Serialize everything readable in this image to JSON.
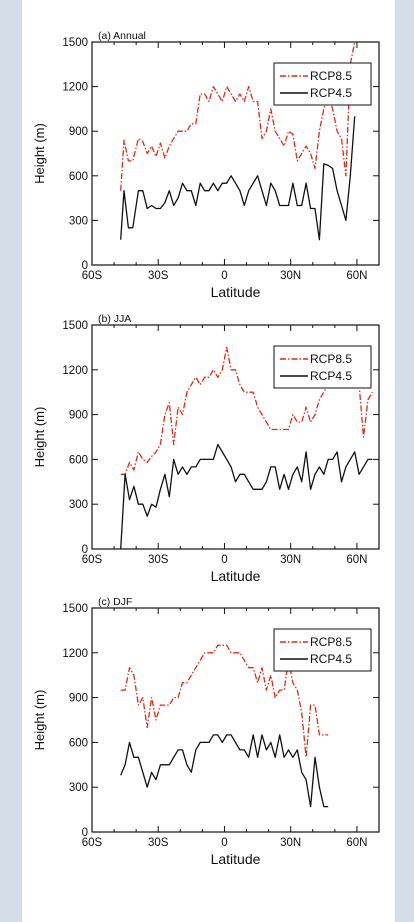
{
  "chart_data": [
    {
      "type": "line",
      "title": "(a) Annual",
      "xlabel": "Latitude",
      "ylabel": "Height (m)",
      "xlim": [
        -60,
        70
      ],
      "ylim": [
        0,
        1500
      ],
      "xticks": [
        -60,
        -30,
        0,
        30,
        60
      ],
      "xtick_labels": [
        "60S",
        "30S",
        "0",
        "30N",
        "60N"
      ],
      "yticks": [
        0,
        300,
        600,
        900,
        1200,
        1500
      ],
      "ytick_labels": [
        "0",
        "300",
        "600",
        "900",
        "1200",
        "1500"
      ],
      "grid": false,
      "legend_position": "top-right",
      "series": [
        {
          "name": "RCP8.5",
          "color": "#dd2c12",
          "dash": "dashed",
          "x": [
            -47,
            -45.5,
            -43.5,
            -41.5,
            -39,
            -37,
            -35,
            -33,
            -31,
            -29,
            -27,
            -25,
            -23,
            -21,
            -19,
            -17,
            -15,
            -13,
            -11,
            -9,
            -7,
            -5,
            -3,
            -1,
            1,
            3,
            5,
            7,
            9,
            11,
            13,
            15,
            17,
            19,
            21,
            23,
            25,
            27,
            29,
            31,
            33,
            35,
            37,
            39,
            41,
            43,
            45,
            47,
            49,
            51,
            53,
            55,
            57,
            59
          ],
          "y": [
            500,
            840,
            700,
            700,
            850,
            830,
            750,
            800,
            730,
            820,
            720,
            800,
            850,
            900,
            900,
            900,
            950,
            950,
            1150,
            1150,
            1100,
            1200,
            1150,
            1100,
            1200,
            1150,
            1100,
            1150,
            1100,
            1200,
            1100,
            1100,
            850,
            900,
            1050,
            900,
            850,
            800,
            900,
            880,
            700,
            750,
            800,
            750,
            650,
            900,
            1050,
            1150,
            1050,
            900,
            850,
            600,
            1350,
            1500
          ]
        },
        {
          "name": "RCP4.5",
          "color": "#111111",
          "dash": "solid",
          "x": [
            -47,
            -45.5,
            -43.5,
            -41.5,
            -39,
            -37,
            -35,
            -33,
            -31,
            -29,
            -27,
            -25,
            -23,
            -21,
            -19,
            -17,
            -15,
            -13,
            -11,
            -9,
            -7,
            -5,
            -3,
            -1,
            1,
            3,
            5,
            7,
            9,
            11,
            13,
            15,
            17,
            19,
            21,
            23,
            25,
            27,
            29,
            31,
            33,
            35,
            37,
            39,
            41,
            43,
            45,
            47,
            49,
            51,
            53,
            55,
            57,
            59
          ],
          "y": [
            170,
            500,
            250,
            250,
            500,
            500,
            380,
            400,
            380,
            380,
            420,
            500,
            400,
            450,
            550,
            500,
            500,
            400,
            550,
            500,
            500,
            550,
            500,
            550,
            550,
            600,
            550,
            500,
            400,
            500,
            550,
            600,
            500,
            400,
            550,
            500,
            400,
            400,
            400,
            550,
            400,
            400,
            550,
            380,
            380,
            170,
            680,
            670,
            650,
            500,
            400,
            300,
            600,
            1000
          ]
        }
      ]
    },
    {
      "type": "line",
      "title": "(b) JJA",
      "xlabel": "Latitude",
      "ylabel": "Height (m)",
      "xlim": [
        -60,
        70
      ],
      "ylim": [
        0,
        1500
      ],
      "xticks": [
        -60,
        -30,
        0,
        30,
        60
      ],
      "xtick_labels": [
        "60S",
        "30S",
        "0",
        "30N",
        "60N"
      ],
      "yticks": [
        0,
        300,
        600,
        900,
        1200,
        1500
      ],
      "ytick_labels": [
        "0",
        "300",
        "600",
        "900",
        "1200",
        "1500"
      ],
      "grid": false,
      "legend_position": "top-right",
      "series": [
        {
          "name": "RCP8.5",
          "color": "#dd2c12",
          "dash": "dashed",
          "x": [
            -47,
            -45,
            -43,
            -41,
            -39,
            -37,
            -35,
            -33,
            -31,
            -29,
            -27,
            -25,
            -23,
            -21,
            -19,
            -17,
            -15,
            -13,
            -11,
            -9,
            -7,
            -5,
            -3,
            -1,
            1,
            3,
            5,
            7,
            9,
            11,
            13,
            15,
            17,
            19,
            21,
            23,
            25,
            27,
            29,
            31,
            33,
            35,
            37,
            39,
            41,
            43,
            45,
            47,
            49,
            51,
            53,
            55,
            57,
            59,
            61,
            63,
            65,
            67
          ],
          "y": [
            500,
            500,
            580,
            530,
            650,
            600,
            580,
            620,
            650,
            700,
            900,
            980,
            700,
            950,
            900,
            1050,
            1100,
            1150,
            1100,
            1150,
            1150,
            1200,
            1150,
            1200,
            1350,
            1200,
            1200,
            1100,
            1050,
            1050,
            1050,
            950,
            900,
            850,
            800,
            800,
            800,
            800,
            800,
            900,
            850,
            850,
            950,
            850,
            900,
            1000,
            1050,
            1100,
            1150,
            1100,
            1150,
            1200,
            1150,
            1100,
            1100,
            750,
            1000,
            1050
          ]
        },
        {
          "name": "RCP4.5",
          "color": "#111111",
          "dash": "solid",
          "x": [
            -47,
            -45,
            -43,
            -41,
            -39,
            -37,
            -35,
            -33,
            -31,
            -29,
            -27,
            -25,
            -23,
            -21,
            -19,
            -17,
            -15,
            -13,
            -11,
            -9,
            -7,
            -5,
            -3,
            -1,
            1,
            3,
            5,
            7,
            9,
            11,
            13,
            15,
            17,
            19,
            21,
            23,
            25,
            27,
            29,
            31,
            33,
            35,
            37,
            39,
            41,
            43,
            45,
            47,
            49,
            51,
            53,
            55,
            57,
            59,
            61,
            63,
            65,
            67
          ],
          "y": [
            0,
            500,
            330,
            420,
            300,
            300,
            220,
            300,
            280,
            400,
            500,
            350,
            600,
            500,
            550,
            500,
            550,
            550,
            600,
            600,
            600,
            600,
            700,
            650,
            600,
            550,
            450,
            500,
            500,
            450,
            400,
            400,
            400,
            450,
            550,
            550,
            400,
            500,
            400,
            500,
            550,
            450,
            650,
            400,
            500,
            550,
            500,
            600,
            600,
            650,
            450,
            550,
            600,
            650,
            500,
            550,
            600,
            600
          ]
        }
      ]
    },
    {
      "type": "line",
      "title": "(c) DJF",
      "xlabel": "Latitude",
      "ylabel": "Height (m)",
      "xlim": [
        -60,
        70
      ],
      "ylim": [
        0,
        1500
      ],
      "xticks": [
        -60,
        -30,
        0,
        30,
        60
      ],
      "xtick_labels": [
        "60S",
        "30S",
        "0",
        "30N",
        "60N"
      ],
      "yticks": [
        0,
        300,
        600,
        900,
        1200,
        1500
      ],
      "ytick_labels": [
        "0",
        "300",
        "600",
        "900",
        "1200",
        "1500"
      ],
      "grid": false,
      "legend_position": "top-right",
      "series": [
        {
          "name": "RCP8.5",
          "color": "#dd2c12",
          "dash": "dashed",
          "x": [
            -47,
            -45,
            -43,
            -41,
            -39,
            -37,
            -35,
            -33,
            -31,
            -29,
            -27,
            -25,
            -23,
            -21,
            -19,
            -17,
            -15,
            -13,
            -11,
            -9,
            -7,
            -5,
            -3,
            -1,
            1,
            3,
            5,
            7,
            9,
            11,
            13,
            15,
            17,
            19,
            21,
            23,
            25,
            27,
            29,
            31,
            33,
            35,
            37,
            39,
            41,
            43,
            45,
            47
          ],
          "y": [
            950,
            950,
            1100,
            1050,
            850,
            900,
            700,
            900,
            750,
            850,
            850,
            850,
            900,
            900,
            1000,
            1000,
            1050,
            1100,
            1150,
            1200,
            1200,
            1200,
            1250,
            1250,
            1250,
            1200,
            1200,
            1200,
            1150,
            1100,
            1100,
            1000,
            1100,
            950,
            1050,
            900,
            950,
            950,
            1150,
            1000,
            950,
            800,
            500,
            850,
            850,
            650,
            650,
            650
          ]
        },
        {
          "name": "RCP4.5",
          "color": "#111111",
          "dash": "solid",
          "x": [
            -47,
            -45,
            -43,
            -41,
            -39,
            -37,
            -35,
            -33,
            -31,
            -29,
            -27,
            -25,
            -23,
            -21,
            -19,
            -17,
            -15,
            -13,
            -11,
            -9,
            -7,
            -5,
            -3,
            -1,
            1,
            3,
            5,
            7,
            9,
            11,
            13,
            15,
            17,
            19,
            21,
            23,
            25,
            27,
            29,
            31,
            33,
            35,
            37,
            39,
            41,
            43,
            45,
            47
          ],
          "y": [
            380,
            450,
            600,
            500,
            500,
            400,
            300,
            400,
            350,
            450,
            450,
            450,
            500,
            550,
            550,
            450,
            400,
            550,
            600,
            600,
            600,
            650,
            650,
            600,
            650,
            650,
            600,
            550,
            550,
            500,
            650,
            500,
            650,
            550,
            600,
            500,
            650,
            500,
            550,
            500,
            550,
            400,
            350,
            170,
            500,
            300,
            170,
            170
          ]
        }
      ]
    }
  ]
}
